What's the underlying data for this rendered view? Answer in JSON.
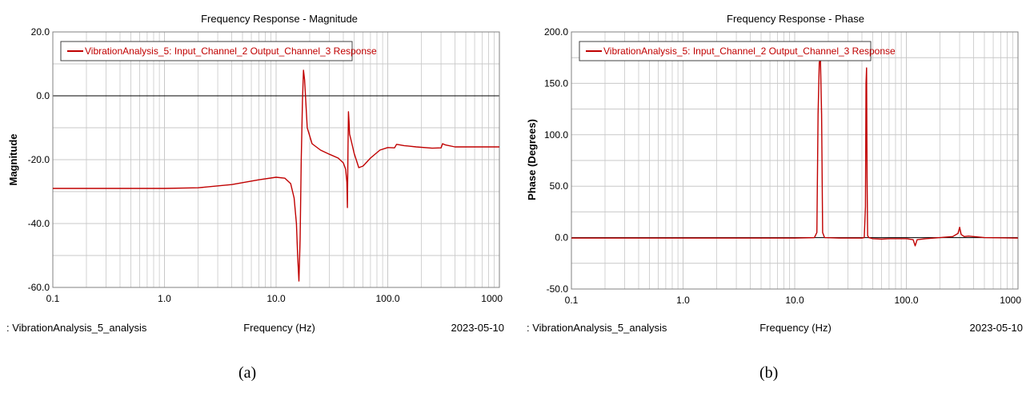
{
  "colors": {
    "series": "#c00000",
    "zero_line": "#000000",
    "grid": "#c8c8c8",
    "frame": "#808080"
  },
  "charts": [
    {
      "caption": "(a)",
      "footer": {
        "left": ": VibrationAnalysis_5_analysis",
        "center": "Frequency (Hz)",
        "right": "2023-05-10"
      },
      "chart_data": {
        "type": "line",
        "title": "Frequency Response - Magnitude",
        "xlabel": "Frequency (Hz)",
        "ylabel": "Magnitude",
        "x_scale": "log",
        "xlim": [
          0.1,
          1000
        ],
        "ylim": [
          -60,
          20
        ],
        "x_ticks": [
          0.1,
          1,
          10,
          100,
          1000
        ],
        "x_tick_labels": [
          "0.1",
          "1.0",
          "10.0",
          "100.0",
          "1000"
        ],
        "y_ticks": [
          20,
          0,
          -20,
          -40,
          -60
        ],
        "y_tick_labels": [
          "20.0",
          "0.0",
          "-20.0",
          "-40.0",
          "-60.0"
        ],
        "grid": true,
        "legend_position": "top-left",
        "series": [
          {
            "name": "VibrationAnalysis_5: Input_Channel_2 Output_Channel_3 Response",
            "x": [
              0.1,
              0.5,
              1,
              2,
              4,
              7,
              10,
              12,
              13.5,
              14.5,
              15.2,
              15.6,
              16,
              16.4,
              16.8,
              17.2,
              17.6,
              18,
              19,
              21,
              25,
              30,
              36,
              40,
              42,
              43,
              43.5,
              44,
              44.5,
              45,
              45.5,
              47,
              50,
              55,
              60,
              70,
              85,
              100,
              115,
              120,
              125,
              140,
              180,
              250,
              300,
              310,
              330,
              400,
              600,
              1000
            ],
            "y": [
              -29,
              -29,
              -29,
              -28.8,
              -27.8,
              -26.3,
              -25.5,
              -25.8,
              -27.5,
              -32,
              -40,
              -50,
              -58,
              -45,
              -20,
              -2,
              8,
              5,
              -10,
              -15,
              -17,
              -18.3,
              -19.5,
              -21,
              -23,
              -27,
              -35,
              -17,
              -5,
              -8,
              -12,
              -14,
              -18,
              -22.5,
              -22,
              -19.5,
              -17,
              -16.2,
              -16.3,
              -15.2,
              -15.3,
              -15.6,
              -16,
              -16.4,
              -16.3,
              -15,
              -15.4,
              -16,
              -16,
              -16
            ]
          }
        ]
      }
    },
    {
      "caption": "(b)",
      "footer": {
        "left": ": VibrationAnalysis_5_analysis",
        "center": "Frequency (Hz)",
        "right": "2023-05-10"
      },
      "chart_data": {
        "type": "line",
        "title": "Frequency Response - Phase",
        "xlabel": "Frequency (Hz)",
        "ylabel": "Phase (Degrees)",
        "x_scale": "log",
        "xlim": [
          0.1,
          1000
        ],
        "ylim": [
          -50,
          200
        ],
        "x_ticks": [
          0.1,
          1,
          10,
          100,
          1000
        ],
        "x_tick_labels": [
          "0.1",
          "1.0",
          "10.0",
          "100.0",
          "1000"
        ],
        "y_ticks": [
          200,
          150,
          100,
          50,
          0,
          -50
        ],
        "y_tick_labels": [
          "200.0",
          "150.0",
          "100.0",
          "50.0",
          "0.0",
          "-50.0"
        ],
        "grid": true,
        "legend_position": "top-left",
        "series": [
          {
            "name": "VibrationAnalysis_5: Input_Channel_2 Output_Channel_3 Response",
            "x": [
              0.1,
              1,
              10,
              15,
              15.8,
              16.2,
              16.6,
              17,
              17.4,
              17.8,
              18.5,
              25,
              40,
              42,
              43,
              43.5,
              44,
              44.5,
              45,
              46,
              50,
              60,
              70,
              100,
              115,
              120,
              125,
              150,
              200,
              260,
              290,
              300,
              310,
              330,
              360,
              400,
              500,
              1000
            ],
            "y": [
              -0.5,
              -0.5,
              -0.5,
              0,
              5,
              120,
              170,
              175,
              120,
              5,
              0,
              -0.5,
              -0.5,
              0,
              30,
              150,
              165,
              60,
              2,
              0,
              -1,
              -1.5,
              -1,
              -1,
              -2,
              -8,
              -2,
              -1,
              0,
              1,
              4,
              10,
              3,
              1,
              1.5,
              1,
              0,
              -0.5
            ]
          }
        ]
      }
    }
  ]
}
